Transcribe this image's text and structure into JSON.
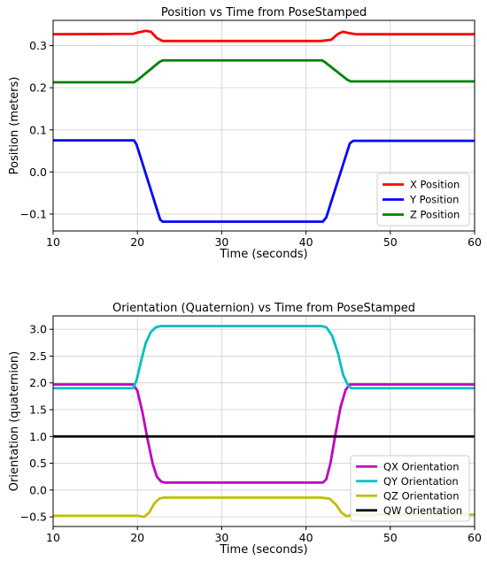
{
  "chart_data": [
    {
      "type": "line",
      "title": "Position vs Time from PoseStamped",
      "xlabel": "Time (seconds)",
      "ylabel": "Position (meters)",
      "xlim": [
        10,
        60
      ],
      "ylim": [
        -0.14,
        0.36
      ],
      "xticks": [
        10,
        20,
        30,
        40,
        50,
        60
      ],
      "yticks": [
        -0.1,
        0.0,
        0.1,
        0.2,
        0.3
      ],
      "ytick_labels": [
        "−0.1",
        "0.0",
        "0.1",
        "0.2",
        "0.3"
      ],
      "grid": true,
      "legend_position": "lower-right",
      "series": [
        {
          "name": "X Position",
          "color": "#ff0000",
          "x": [
            10,
            19.5,
            20.2,
            21.0,
            21.6,
            22.3,
            23.0,
            41.8,
            43.0,
            43.8,
            44.4,
            45.0,
            46.0,
            60
          ],
          "y": [
            0.327,
            0.328,
            0.332,
            0.335,
            0.333,
            0.318,
            0.311,
            0.311,
            0.314,
            0.328,
            0.333,
            0.33,
            0.327,
            0.327
          ]
        },
        {
          "name": "Y Position",
          "color": "#0000ff",
          "x": [
            10,
            19.6,
            19.9,
            22.7,
            23.0,
            42.0,
            42.4,
            45.2,
            45.6,
            60
          ],
          "y": [
            0.075,
            0.075,
            0.065,
            -0.113,
            -0.118,
            -0.118,
            -0.108,
            0.068,
            0.074,
            0.074
          ]
        },
        {
          "name": "Z Position",
          "color": "#008000",
          "x": [
            10,
            19.6,
            20.0,
            22.6,
            23.0,
            41.9,
            42.3,
            44.9,
            45.3,
            60
          ],
          "y": [
            0.213,
            0.213,
            0.218,
            0.261,
            0.265,
            0.265,
            0.26,
            0.219,
            0.215,
            0.215
          ]
        }
      ]
    },
    {
      "type": "line",
      "title": "Orientation (Quaternion) vs Time from PoseStamped",
      "xlabel": "Time (seconds)",
      "ylabel": "Orientation (quaternion)",
      "xlim": [
        10,
        60
      ],
      "ylim": [
        -0.68,
        3.25
      ],
      "xticks": [
        10,
        20,
        30,
        40,
        50,
        60
      ],
      "yticks": [
        -0.5,
        0.0,
        0.5,
        1.0,
        1.5,
        2.0,
        2.5,
        3.0
      ],
      "ytick_labels": [
        "−0.5",
        "0.0",
        "0.5",
        "1.0",
        "1.5",
        "2.0",
        "2.5",
        "3.0"
      ],
      "grid": true,
      "legend_position": "lower-right",
      "series": [
        {
          "name": "QX Orientation",
          "color": "#c000c0",
          "x": [
            10,
            19.5,
            20.0,
            20.6,
            21.2,
            21.8,
            22.3,
            22.8,
            23.2,
            42.0,
            42.4,
            42.9,
            43.5,
            44.1,
            44.7,
            45.2,
            60
          ],
          "y": [
            1.97,
            1.97,
            1.85,
            1.45,
            0.95,
            0.5,
            0.25,
            0.16,
            0.14,
            0.14,
            0.2,
            0.5,
            1.05,
            1.55,
            1.87,
            1.97,
            1.97
          ]
        },
        {
          "name": "QY Orientation",
          "color": "#00bfbf",
          "x": [
            10,
            19.5,
            19.9,
            20.5,
            21.0,
            21.6,
            22.2,
            22.8,
            23.3,
            41.8,
            42.4,
            43.1,
            43.8,
            44.4,
            45.0,
            45.4,
            60
          ],
          "y": [
            1.9,
            1.9,
            2.05,
            2.45,
            2.75,
            2.95,
            3.04,
            3.06,
            3.06,
            3.06,
            3.04,
            2.88,
            2.55,
            2.15,
            1.95,
            1.9,
            1.9
          ]
        },
        {
          "name": "QZ Orientation",
          "color": "#bfbf00",
          "x": [
            10,
            20.0,
            20.8,
            21.4,
            22.0,
            22.6,
            23.2,
            41.7,
            42.8,
            43.6,
            44.2,
            44.8,
            45.4,
            60
          ],
          "y": [
            -0.48,
            -0.48,
            -0.5,
            -0.42,
            -0.25,
            -0.16,
            -0.14,
            -0.14,
            -0.16,
            -0.28,
            -0.42,
            -0.49,
            -0.46,
            -0.46
          ]
        },
        {
          "name": "QW Orientation",
          "color": "#000000",
          "x": [
            10,
            60
          ],
          "y": [
            1.0,
            1.0
          ]
        }
      ]
    }
  ]
}
